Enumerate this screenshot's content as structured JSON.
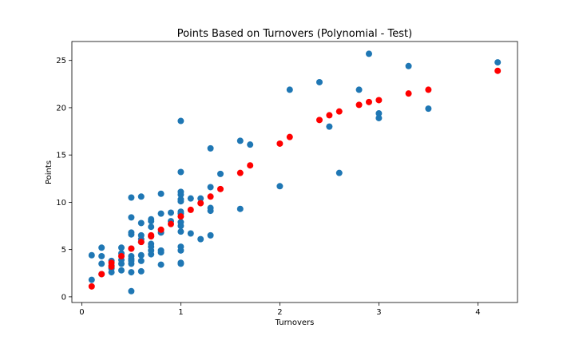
{
  "chart_data": {
    "type": "scatter",
    "title": "Points Based on Turnovers (Polynomial - Test)",
    "xlabel": "Turnovers",
    "ylabel": "Points",
    "xlim": [
      -0.1,
      4.4
    ],
    "ylim": [
      -0.6,
      27.0
    ],
    "xticks": [
      0,
      1,
      2,
      3,
      4
    ],
    "yticks": [
      0,
      5,
      10,
      15,
      20,
      25
    ],
    "grid": false,
    "legend": "none",
    "series": [
      {
        "color": "#1f77b4",
        "marker_radius": 4,
        "points": [
          [
            0.1,
            4.4
          ],
          [
            0.1,
            1.8
          ],
          [
            0.2,
            5.2
          ],
          [
            0.2,
            4.3
          ],
          [
            0.2,
            3.5
          ],
          [
            0.2,
            2.4
          ],
          [
            0.3,
            3.8
          ],
          [
            0.3,
            3.3
          ],
          [
            0.3,
            3.0
          ],
          [
            0.3,
            2.6
          ],
          [
            0.4,
            5.2
          ],
          [
            0.4,
            4.6
          ],
          [
            0.4,
            3.9
          ],
          [
            0.4,
            3.5
          ],
          [
            0.4,
            2.8
          ],
          [
            0.5,
            10.5
          ],
          [
            0.5,
            8.4
          ],
          [
            0.5,
            6.8
          ],
          [
            0.5,
            6.6
          ],
          [
            0.5,
            5.1
          ],
          [
            0.5,
            4.3
          ],
          [
            0.5,
            4.0
          ],
          [
            0.5,
            3.8
          ],
          [
            0.5,
            3.5
          ],
          [
            0.5,
            2.6
          ],
          [
            0.5,
            0.6
          ],
          [
            0.6,
            10.6
          ],
          [
            0.6,
            7.8
          ],
          [
            0.6,
            6.5
          ],
          [
            0.6,
            6.1
          ],
          [
            0.6,
            5.8
          ],
          [
            0.6,
            4.4
          ],
          [
            0.6,
            3.8
          ],
          [
            0.6,
            2.7
          ],
          [
            0.7,
            8.2
          ],
          [
            0.7,
            8.0
          ],
          [
            0.7,
            7.4
          ],
          [
            0.7,
            6.4
          ],
          [
            0.7,
            5.6
          ],
          [
            0.7,
            5.3
          ],
          [
            0.7,
            4.9
          ],
          [
            0.7,
            4.5
          ],
          [
            0.8,
            10.9
          ],
          [
            0.8,
            8.8
          ],
          [
            0.8,
            6.8
          ],
          [
            0.8,
            4.9
          ],
          [
            0.8,
            4.7
          ],
          [
            0.8,
            3.4
          ],
          [
            0.9,
            8.9
          ],
          [
            0.9,
            8.0
          ],
          [
            1.0,
            18.6
          ],
          [
            1.0,
            13.2
          ],
          [
            1.0,
            11.1
          ],
          [
            1.0,
            10.8
          ],
          [
            1.0,
            10.3
          ],
          [
            1.0,
            10.1
          ],
          [
            1.0,
            9.0
          ],
          [
            1.0,
            8.8
          ],
          [
            1.0,
            7.9
          ],
          [
            1.0,
            7.5
          ],
          [
            1.0,
            6.9
          ],
          [
            1.0,
            5.3
          ],
          [
            1.0,
            4.9
          ],
          [
            1.0,
            3.6
          ],
          [
            1.0,
            3.5
          ],
          [
            1.1,
            10.4
          ],
          [
            1.1,
            6.7
          ],
          [
            1.2,
            10.4
          ],
          [
            1.2,
            6.1
          ],
          [
            1.3,
            15.7
          ],
          [
            1.3,
            11.6
          ],
          [
            1.3,
            9.4
          ],
          [
            1.3,
            9.1
          ],
          [
            1.3,
            6.5
          ],
          [
            1.4,
            13.0
          ],
          [
            1.6,
            16.5
          ],
          [
            1.6,
            9.3
          ],
          [
            1.7,
            16.1
          ],
          [
            2.0,
            11.7
          ],
          [
            2.1,
            21.9
          ],
          [
            2.4,
            22.7
          ],
          [
            2.5,
            18.0
          ],
          [
            2.6,
            13.1
          ],
          [
            2.8,
            21.9
          ],
          [
            2.9,
            25.7
          ],
          [
            3.0,
            19.4
          ],
          [
            3.0,
            18.9
          ],
          [
            3.3,
            24.4
          ],
          [
            3.5,
            19.9
          ],
          [
            4.2,
            24.8
          ]
        ]
      },
      {
        "color": "#ff0000",
        "marker_radius": 4,
        "points": [
          [
            0.1,
            1.1
          ],
          [
            0.2,
            2.4
          ],
          [
            0.3,
            3.2
          ],
          [
            0.3,
            3.6
          ],
          [
            0.4,
            4.3
          ],
          [
            0.5,
            5.1
          ],
          [
            0.6,
            5.8
          ],
          [
            0.7,
            6.4
          ],
          [
            0.7,
            6.5
          ],
          [
            0.8,
            7.1
          ],
          [
            0.9,
            7.7
          ],
          [
            1.0,
            8.5
          ],
          [
            1.1,
            9.2
          ],
          [
            1.2,
            9.9
          ],
          [
            1.3,
            10.6
          ],
          [
            1.4,
            11.4
          ],
          [
            1.6,
            13.1
          ],
          [
            1.7,
            13.9
          ],
          [
            2.0,
            16.2
          ],
          [
            2.1,
            16.9
          ],
          [
            2.4,
            18.7
          ],
          [
            2.5,
            19.2
          ],
          [
            2.6,
            19.6
          ],
          [
            2.8,
            20.3
          ],
          [
            2.9,
            20.6
          ],
          [
            3.0,
            20.8
          ],
          [
            3.3,
            21.5
          ],
          [
            3.5,
            21.9
          ],
          [
            4.2,
            23.9
          ]
        ]
      }
    ]
  }
}
